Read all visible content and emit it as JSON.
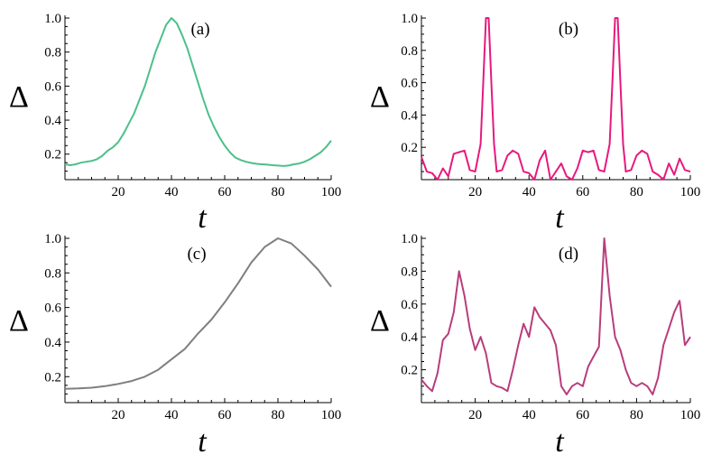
{
  "chart_data": [
    {
      "type": "line",
      "panel": "(a)",
      "color": "#4cc08a",
      "xlabel": "t",
      "ylabel": "Δ",
      "xlim": [
        0,
        100
      ],
      "ylim": [
        0.05,
        1.0
      ],
      "xticks": [
        20,
        40,
        60,
        80,
        100
      ],
      "xtick_labels": [
        "20",
        "40",
        "60",
        "80",
        "100"
      ],
      "yticks": [
        0.2,
        0.4,
        0.6,
        0.8,
        1.0
      ],
      "ytick_labels": [
        "0.2",
        "0.4",
        "0.6",
        "0.8",
        "1.0"
      ],
      "x": [
        0,
        2,
        4,
        6,
        8,
        10,
        12,
        14,
        16,
        18,
        20,
        22,
        24,
        26,
        28,
        30,
        32,
        34,
        36,
        38,
        40,
        42,
        44,
        46,
        48,
        50,
        52,
        54,
        56,
        58,
        60,
        62,
        64,
        66,
        68,
        70,
        72,
        74,
        76,
        78,
        80,
        82,
        84,
        86,
        88,
        90,
        92,
        94,
        96,
        98,
        100
      ],
      "y": [
        0.14,
        0.135,
        0.14,
        0.15,
        0.155,
        0.16,
        0.17,
        0.19,
        0.22,
        0.24,
        0.27,
        0.32,
        0.38,
        0.44,
        0.52,
        0.6,
        0.7,
        0.8,
        0.88,
        0.96,
        1.0,
        0.97,
        0.9,
        0.82,
        0.72,
        0.62,
        0.52,
        0.43,
        0.36,
        0.3,
        0.25,
        0.21,
        0.18,
        0.165,
        0.155,
        0.148,
        0.143,
        0.14,
        0.138,
        0.135,
        0.133,
        0.13,
        0.133,
        0.14,
        0.145,
        0.155,
        0.17,
        0.19,
        0.21,
        0.24,
        0.28
      ]
    },
    {
      "type": "line",
      "panel": "(b)",
      "color": "#e6197f",
      "xlabel": "t",
      "ylabel": "Δ",
      "xlim": [
        0,
        100
      ],
      "ylim": [
        0.0,
        1.0
      ],
      "xticks": [
        20,
        40,
        60,
        80,
        100
      ],
      "xtick_labels": [
        "20",
        "40",
        "60",
        "80",
        "100"
      ],
      "yticks": [
        0.2,
        0.4,
        0.6,
        0.8,
        1.0
      ],
      "ytick_labels": [
        "0.2",
        "0.4",
        "0.6",
        "0.8",
        "1.0"
      ],
      "x": [
        0,
        2,
        4,
        6,
        8,
        10,
        12,
        14,
        16,
        18,
        20,
        22,
        23,
        24,
        25,
        26,
        27,
        28,
        30,
        32,
        34,
        36,
        38,
        40,
        42,
        44,
        46,
        48,
        50,
        52,
        54,
        56,
        58,
        60,
        62,
        64,
        66,
        68,
        70,
        71,
        72,
        73,
        74,
        75,
        76,
        78,
        80,
        82,
        84,
        86,
        88,
        90,
        92,
        94,
        96,
        98,
        100
      ],
      "y": [
        0.14,
        0.05,
        0.04,
        0.0,
        0.07,
        0.02,
        0.16,
        0.17,
        0.18,
        0.06,
        0.05,
        0.22,
        0.6,
        1.0,
        1.0,
        0.6,
        0.22,
        0.05,
        0.06,
        0.15,
        0.18,
        0.16,
        0.05,
        0.04,
        0.0,
        0.12,
        0.18,
        0.0,
        0.05,
        0.1,
        0.02,
        0.0,
        0.07,
        0.18,
        0.17,
        0.18,
        0.06,
        0.05,
        0.22,
        0.6,
        1.0,
        1.0,
        0.6,
        0.22,
        0.05,
        0.06,
        0.15,
        0.18,
        0.16,
        0.05,
        0.03,
        0.0,
        0.1,
        0.03,
        0.13,
        0.06,
        0.05
      ]
    },
    {
      "type": "line",
      "panel": "(c)",
      "color": "#7f7f7f",
      "xlabel": "t",
      "ylabel": "Δ",
      "xlim": [
        0,
        100
      ],
      "ylim": [
        0.05,
        1.0
      ],
      "xticks": [
        20,
        40,
        60,
        80,
        100
      ],
      "xtick_labels": [
        "20",
        "40",
        "60",
        "80",
        "100"
      ],
      "yticks": [
        0.2,
        0.4,
        0.6,
        0.8,
        1.0
      ],
      "ytick_labels": [
        "0.2",
        "0.4",
        "0.6",
        "0.8",
        "1.0"
      ],
      "x": [
        0,
        5,
        10,
        15,
        20,
        25,
        30,
        35,
        40,
        45,
        50,
        55,
        60,
        65,
        70,
        75,
        80,
        85,
        90,
        95,
        100
      ],
      "y": [
        0.13,
        0.132,
        0.136,
        0.145,
        0.158,
        0.175,
        0.2,
        0.24,
        0.3,
        0.36,
        0.45,
        0.53,
        0.63,
        0.74,
        0.86,
        0.95,
        1.0,
        0.97,
        0.9,
        0.82,
        0.72
      ]
    },
    {
      "type": "line",
      "panel": "(d)",
      "color": "#b83d7c",
      "xlabel": "t",
      "ylabel": "Δ",
      "xlim": [
        0,
        100
      ],
      "ylim": [
        0.0,
        1.0
      ],
      "xticks": [
        20,
        40,
        60,
        80,
        100
      ],
      "xtick_labels": [
        "20",
        "40",
        "60",
        "80",
        "100"
      ],
      "yticks": [
        0.2,
        0.4,
        0.6,
        0.8,
        1.0
      ],
      "ytick_labels": [
        "0.2",
        "0.4",
        "0.6",
        "0.8",
        "1.0"
      ],
      "x": [
        0,
        2,
        4,
        6,
        8,
        10,
        12,
        14,
        16,
        18,
        20,
        22,
        24,
        26,
        28,
        30,
        32,
        34,
        36,
        38,
        40,
        42,
        44,
        46,
        48,
        50,
        52,
        54,
        56,
        58,
        60,
        62,
        64,
        66,
        68,
        70,
        72,
        74,
        76,
        78,
        80,
        82,
        84,
        86,
        88,
        90,
        92,
        94,
        96,
        98,
        100
      ],
      "y": [
        0.14,
        0.1,
        0.07,
        0.18,
        0.38,
        0.42,
        0.55,
        0.8,
        0.65,
        0.45,
        0.32,
        0.4,
        0.3,
        0.12,
        0.1,
        0.09,
        0.07,
        0.2,
        0.35,
        0.48,
        0.4,
        0.58,
        0.52,
        0.48,
        0.44,
        0.35,
        0.1,
        0.05,
        0.1,
        0.12,
        0.1,
        0.22,
        0.28,
        0.34,
        1.0,
        0.65,
        0.4,
        0.32,
        0.2,
        0.12,
        0.1,
        0.12,
        0.1,
        0.05,
        0.15,
        0.35,
        0.45,
        0.55,
        0.62,
        0.35,
        0.4
      ]
    }
  ]
}
